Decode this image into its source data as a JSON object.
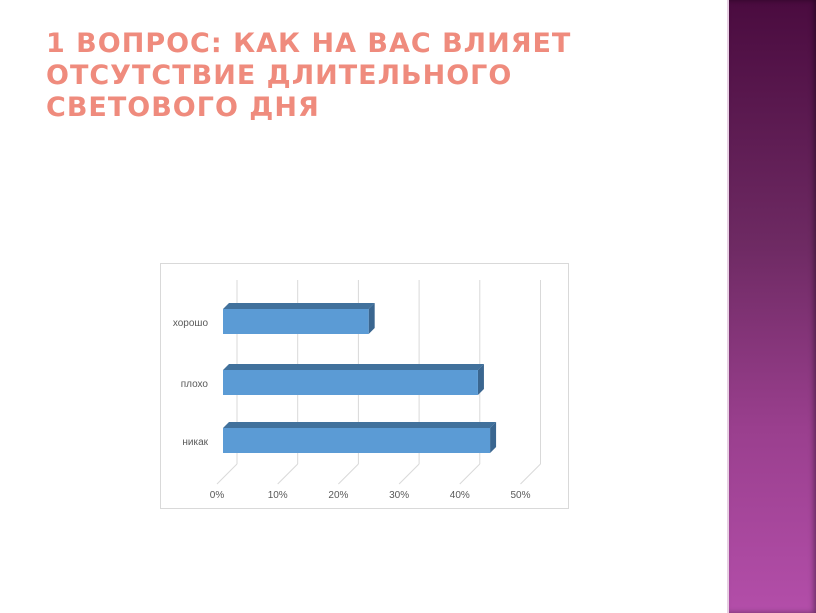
{
  "slide": {
    "title": "1 вопрос: Как на вас влияет отсутствие длительного светового дня"
  },
  "colors": {
    "bar_front": "#5b9bd5",
    "bar_top": "#41719c",
    "title": "#ef8b7d",
    "sidebar": "#7d2e70"
  },
  "chart_data": {
    "type": "bar",
    "orientation": "horizontal",
    "style": "3d",
    "categories": [
      "хорошо",
      "плохо",
      "никак"
    ],
    "values": [
      24,
      42,
      44
    ],
    "xlim": [
      0,
      50
    ],
    "xticks": [
      "0%",
      "10%",
      "20%",
      "30%",
      "40%",
      "50%"
    ],
    "grid": true,
    "legend": "none"
  }
}
